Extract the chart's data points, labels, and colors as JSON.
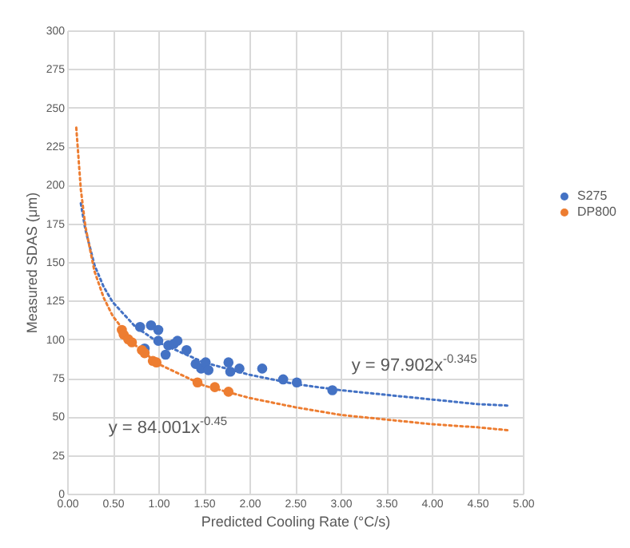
{
  "chart_data": {
    "type": "scatter",
    "xlabel": "Predicted Cooling Rate (°C/s)",
    "ylabel": "Measured SDAS (μm)",
    "xlim": [
      0,
      5
    ],
    "ylim": [
      0,
      300
    ],
    "xticks": [
      {
        "value": 0,
        "label": "0.00"
      },
      {
        "value": 0.5,
        "label": "0.50"
      },
      {
        "value": 1,
        "label": "1.00"
      },
      {
        "value": 1.5,
        "label": "1.50"
      },
      {
        "value": 2,
        "label": "2.00"
      },
      {
        "value": 2.5,
        "label": "2.50"
      },
      {
        "value": 3,
        "label": "3.00"
      },
      {
        "value": 3.5,
        "label": "3.50"
      },
      {
        "value": 4,
        "label": "4.00"
      },
      {
        "value": 4.5,
        "label": "4.50"
      },
      {
        "value": 5,
        "label": "5.00"
      }
    ],
    "yticks": [
      0,
      25,
      50,
      75,
      100,
      125,
      150,
      175,
      200,
      225,
      250,
      275,
      300
    ],
    "grid": true,
    "legend": "right",
    "marker": "circle",
    "series": [
      {
        "type": "line",
        "color": "#4472c4",
        "line_style": "dotted",
        "marker": "none",
        "x": [
          0.15,
          0.2,
          0.3,
          0.4,
          0.5,
          0.75,
          1,
          1.5,
          2,
          2.5,
          3,
          3.5,
          4,
          4.5,
          4.85
        ],
        "values": [
          188,
          171,
          148,
          134,
          124,
          108,
          98,
          85,
          77,
          71,
          67,
          64,
          61,
          58,
          57
        ]
      },
      {
        "type": "line",
        "color": "#ed7d31",
        "line_style": "dotted",
        "marker": "none",
        "x": [
          0.1,
          0.15,
          0.2,
          0.3,
          0.4,
          0.5,
          0.75,
          1,
          1.5,
          2,
          2.5,
          3,
          3.5,
          4,
          4.5,
          4.85
        ],
        "values": [
          237,
          197,
          173,
          144,
          127,
          115,
          96,
          84,
          70,
          62,
          56,
          51,
          48,
          45,
          43,
          41
        ]
      },
      {
        "name": "S275",
        "color": "#4472c4",
        "x": [
          0.8,
          0.92,
          1.0,
          0.85,
          1.0,
          1.08,
          1.11,
          1.17,
          1.21,
          1.31,
          1.41,
          1.47,
          1.52,
          1.55,
          1.77,
          1.79,
          1.89,
          2.14,
          2.37,
          2.52,
          2.91
        ],
        "values": [
          108,
          109,
          106,
          94,
          99,
          90,
          96,
          97,
          99,
          93,
          84,
          81,
          85,
          80,
          85,
          79,
          81,
          81,
          74,
          72,
          67
        ]
      },
      {
        "name": "DP800",
        "color": "#ed7d31",
        "x": [
          0.6,
          0.62,
          0.67,
          0.71,
          0.82,
          0.85,
          0.94,
          0.98,
          1.43,
          1.62,
          1.77
        ],
        "values": [
          106,
          103,
          100,
          98,
          93,
          91,
          86,
          85,
          72,
          69,
          66
        ]
      }
    ],
    "annotations": [
      "y = 97.902x$^{-0.345}$",
      "y = 84.001x$^{-0.45}$"
    ]
  }
}
